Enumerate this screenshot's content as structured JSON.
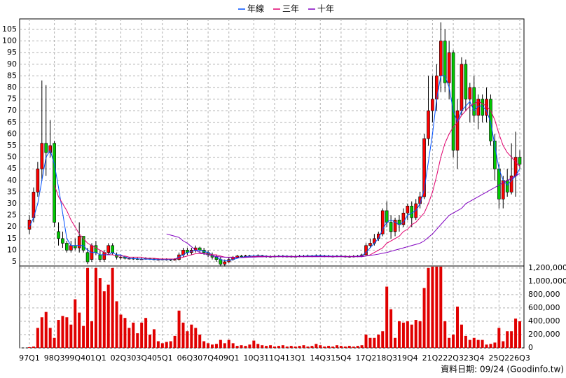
{
  "chart_data": [
    {
      "type": "candlestick",
      "categories": [
        "97Q1",
        null,
        null,
        null,
        null,
        null,
        "98Q3",
        null,
        null,
        null,
        null,
        "99Q4",
        null,
        null,
        null,
        null,
        "01Q1",
        null,
        null,
        null,
        null,
        null,
        "02Q3",
        null,
        null,
        null,
        null,
        "03Q4",
        null,
        null,
        null,
        null,
        "05Q1",
        null,
        null,
        null,
        null,
        null,
        "06Q3",
        null,
        null,
        null,
        null,
        "07Q4",
        null,
        null,
        null,
        null,
        "09Q1",
        null,
        null,
        null,
        null,
        null,
        "10Q3",
        null,
        null,
        null,
        null,
        "11Q4",
        null,
        null,
        null,
        null,
        "13Q1",
        null,
        null,
        null,
        null,
        null,
        "14Q3",
        null,
        null,
        null,
        null,
        "15Q4",
        null,
        null,
        null,
        null,
        null,
        "17Q2",
        null,
        null,
        null,
        null,
        "18Q3",
        null,
        null,
        null,
        null,
        "19Q4",
        null,
        null,
        null,
        null,
        null,
        "21Q2",
        null,
        null,
        null,
        null,
        "22Q3",
        null,
        null,
        null,
        null,
        "23Q4",
        null,
        null,
        null,
        null,
        null,
        "25Q2",
        null,
        null,
        null,
        null,
        "26Q3"
      ],
      "open": [
        19,
        24,
        35,
        45,
        56,
        52,
        56,
        18,
        15,
        13,
        10,
        12,
        11,
        16,
        9,
        6,
        12,
        8,
        6,
        9,
        12,
        8,
        7,
        7,
        6.5,
        6.5,
        6.3,
        6.2,
        6.2,
        6.4,
        6.2,
        6,
        6,
        6.1,
        6,
        5.8,
        6,
        8,
        10,
        9,
        10,
        11,
        10,
        9,
        8,
        7,
        6,
        4,
        5,
        6,
        7,
        7.5,
        7.3,
        7.6,
        7.4,
        7.5,
        7.7,
        7.5,
        7.2,
        7.3,
        7.4,
        7.5,
        7.3,
        7.4,
        7.2,
        7.3,
        7.5,
        7.4,
        7.6,
        7.5,
        7.7,
        7.6,
        7.5,
        7.4,
        7.3,
        7.5,
        7.4,
        7.2,
        7.3,
        7.4,
        7.5,
        8,
        12,
        13,
        15,
        17,
        27,
        22,
        18,
        23,
        21,
        26,
        29,
        24,
        30,
        33,
        58,
        70,
        75,
        85,
        100,
        82,
        95,
        53,
        70,
        90,
        75,
        80,
        68,
        75,
        68,
        75,
        57,
        45,
        32,
        40,
        35,
        42,
        50
      ],
      "high": [
        25,
        37,
        48,
        83,
        81,
        66,
        57,
        22,
        18,
        14,
        14,
        15,
        22,
        16,
        11,
        13,
        14,
        10,
        10,
        13,
        13,
        9,
        8,
        7.5,
        7,
        7,
        6.8,
        6.8,
        7,
        6.8,
        6.6,
        6.5,
        6.6,
        6.5,
        6.3,
        6.5,
        9,
        11,
        11,
        11,
        12,
        11.5,
        11,
        10,
        9,
        8,
        7,
        6,
        7,
        7.5,
        8,
        8,
        8,
        8,
        8,
        8.2,
        8,
        7.8,
        7.8,
        7.9,
        8,
        8,
        7.9,
        7.8,
        7.8,
        8,
        8,
        8.1,
        8,
        8.2,
        8.1,
        8,
        8,
        7.9,
        8,
        8,
        7.8,
        7.8,
        7.9,
        8,
        8.5,
        13,
        15,
        17,
        18,
        28,
        31,
        25,
        24,
        25,
        28,
        30,
        31,
        32,
        35,
        60,
        85,
        85,
        90,
        108,
        105,
        100,
        96,
        75,
        93,
        92,
        82,
        85,
        77,
        77,
        80,
        77,
        60,
        47,
        42,
        45,
        56,
        61,
        53
      ],
      "low": [
        17,
        22,
        33,
        40,
        42,
        50,
        20,
        12,
        11,
        9,
        9,
        10,
        9,
        9,
        4,
        5,
        8,
        5,
        5,
        8,
        8,
        6,
        6,
        6,
        6,
        5.8,
        5.8,
        5.8,
        5.9,
        5.8,
        5.6,
        5.5,
        5.6,
        5.5,
        5.3,
        5.5,
        5.5,
        7,
        8,
        8,
        9,
        9,
        8,
        7,
        6,
        5,
        3,
        3,
        4.5,
        5.5,
        7,
        6.8,
        7,
        7,
        7,
        7.2,
        7,
        6.8,
        6.8,
        6.9,
        7,
        6.9,
        6.9,
        6.8,
        6.9,
        7,
        7,
        7.1,
        7,
        7.2,
        7.1,
        7,
        7,
        6.9,
        7,
        7,
        6.8,
        6.8,
        6.9,
        7,
        7,
        8,
        11,
        12,
        14,
        16,
        20,
        15,
        16,
        18,
        20,
        23,
        20,
        23,
        28,
        32,
        55,
        65,
        70,
        78,
        78,
        75,
        50,
        45,
        68,
        70,
        65,
        65,
        62,
        65,
        65,
        55,
        40,
        28,
        28,
        33,
        34,
        33,
        45
      ],
      "close": [
        23,
        35,
        45,
        56,
        52,
        55,
        22,
        15,
        13,
        10,
        12,
        11,
        16,
        10,
        5,
        12,
        9,
        6,
        9,
        12,
        9,
        7,
        7,
        6.5,
        6.5,
        6.3,
        6.2,
        6.2,
        6.4,
        6.2,
        6,
        6,
        6.1,
        6,
        5.8,
        6,
        8,
        10,
        9,
        10,
        11,
        10,
        9,
        8,
        7,
        6,
        4,
        5,
        6,
        7,
        7.5,
        7.3,
        7.6,
        7.4,
        7.5,
        7.7,
        7.5,
        7.2,
        7.3,
        7.4,
        7.5,
        7.3,
        7.4,
        7.2,
        7.3,
        7.5,
        7.4,
        7.6,
        7.5,
        7.7,
        7.6,
        7.5,
        7.4,
        7.3,
        7.5,
        7.4,
        7.2,
        7.3,
        7.4,
        7.5,
        8,
        12,
        13,
        15,
        17,
        27,
        22,
        18,
        23,
        21,
        26,
        29,
        24,
        30,
        33,
        58,
        70,
        75,
        85,
        100,
        82,
        95,
        53,
        70,
        90,
        75,
        80,
        68,
        75,
        68,
        75,
        57,
        45,
        32,
        40,
        35,
        42,
        50,
        47
      ],
      "up_color": "#ff0000",
      "down_color": "#00c800",
      "series": [
        {
          "name": "年線",
          "color": "#0050ff",
          "values": [
            20,
            24,
            30,
            40,
            50,
            53,
            47,
            37,
            26,
            15,
            12,
            12,
            12,
            12,
            10,
            9,
            9,
            8,
            8,
            8,
            9,
            8,
            8,
            7,
            6.5,
            6.4,
            6.3,
            6.2,
            6.2,
            6.1,
            6,
            6,
            6,
            6,
            6,
            6.2,
            7,
            8,
            9,
            9.5,
            10,
            10,
            9.5,
            9,
            8,
            7,
            6,
            5.5,
            5.5,
            6,
            6.5,
            7,
            7.2,
            7.4,
            7.5,
            7.5,
            7.5,
            7.4,
            7.3,
            7.3,
            7.4,
            7.4,
            7.4,
            7.3,
            7.3,
            7.4,
            7.4,
            7.5,
            7.5,
            7.6,
            7.6,
            7.5,
            7.5,
            7.4,
            7.4,
            7.4,
            7.3,
            7.3,
            7.3,
            7.4,
            7.6,
            9,
            11,
            13,
            15,
            19,
            22,
            23,
            22,
            21,
            22,
            25,
            26,
            27,
            30,
            36,
            48,
            60,
            75,
            85,
            85,
            80,
            70,
            65,
            70,
            72,
            74,
            70,
            72,
            72,
            70,
            65,
            55,
            45,
            40,
            38,
            40,
            42,
            45
          ]
        },
        {
          "name": "三年",
          "color": "#e0006e",
          "values": [
            null,
            null,
            null,
            null,
            null,
            null,
            38,
            33,
            30,
            27,
            23,
            20,
            17,
            15,
            13,
            12,
            11,
            10,
            9,
            8,
            8,
            7.5,
            7.5,
            7.5,
            7,
            7,
            7,
            7,
            6.5,
            6.5,
            6.5,
            6.3,
            6.2,
            6.2,
            6.2,
            6.2,
            6.5,
            7,
            7.5,
            8,
            8.5,
            8.5,
            8.5,
            8.5,
            8,
            8,
            7.5,
            7,
            7,
            7,
            6.8,
            6.8,
            7,
            7.1,
            7.2,
            7.3,
            7.3,
            7.3,
            7.3,
            7.3,
            7.3,
            7.3,
            7.3,
            7.3,
            7.3,
            7.3,
            7.3,
            7.3,
            7.3,
            7.3,
            7.3,
            7.3,
            7.3,
            7.3,
            7.3,
            7.3,
            7.3,
            7.3,
            7.3,
            7.3,
            7.4,
            7.5,
            8,
            9,
            10,
            11,
            13,
            14,
            15,
            16,
            18,
            19,
            21,
            22,
            24,
            26,
            30,
            35,
            42,
            50,
            56,
            60,
            63,
            65,
            68,
            70,
            72,
            73,
            74,
            73,
            72,
            70,
            66,
            60,
            55,
            52,
            50,
            48,
            46
          ]
        },
        {
          "name": "十年",
          "color": "#8000c0",
          "values": [
            null,
            null,
            null,
            null,
            null,
            null,
            null,
            null,
            null,
            null,
            null,
            null,
            null,
            null,
            null,
            null,
            null,
            null,
            null,
            null,
            null,
            null,
            null,
            null,
            null,
            null,
            null,
            null,
            null,
            null,
            null,
            null,
            null,
            17,
            16.5,
            16,
            15.5,
            14,
            13,
            11.5,
            10,
            9,
            8.5,
            8,
            7.5,
            7.3,
            7.1,
            7,
            6.9,
            6.8,
            6.8,
            6.8,
            6.9,
            7,
            7,
            7.1,
            7.1,
            7.2,
            7.2,
            7.2,
            7.2,
            7.2,
            7.2,
            7.2,
            7.2,
            7.2,
            7.2,
            7.2,
            7.2,
            7.2,
            7.2,
            7.2,
            7.2,
            7.2,
            7.2,
            7.2,
            7.2,
            7.2,
            7.2,
            7.2,
            7.2,
            7.5,
            7.8,
            8,
            8.3,
            8.7,
            9,
            9.5,
            10,
            10.5,
            11,
            11.5,
            12,
            12.5,
            13,
            14,
            15.5,
            17,
            19,
            21,
            23,
            25,
            26,
            27,
            28,
            30,
            31,
            32,
            33,
            34,
            35,
            36,
            37,
            38,
            39,
            40,
            41,
            42,
            43
          ]
        }
      ],
      "ylim": [
        3.2,
        109.5
      ],
      "yticks": [
        5,
        10,
        15,
        20,
        25,
        30,
        35,
        40,
        45,
        50,
        55,
        60,
        65,
        70,
        75,
        80,
        85,
        90,
        95,
        100,
        105
      ],
      "grid": true,
      "legend": "top"
    },
    {
      "type": "bar",
      "color": "#e00000",
      "values": [
        10000,
        20000,
        300000,
        460000,
        540000,
        300000,
        150000,
        420000,
        480000,
        460000,
        350000,
        730000,
        530000,
        330000,
        1200000,
        400000,
        1200000,
        1050000,
        850000,
        950000,
        1200000,
        700000,
        500000,
        450000,
        300000,
        380000,
        220000,
        380000,
        450000,
        200000,
        280000,
        100000,
        70000,
        90000,
        100000,
        180000,
        560000,
        380000,
        250000,
        350000,
        300000,
        200000,
        100000,
        70000,
        50000,
        60000,
        120000,
        70000,
        120000,
        70000,
        30000,
        40000,
        30000,
        50000,
        110000,
        60000,
        40000,
        30000,
        40000,
        20000,
        30000,
        40000,
        20000,
        30000,
        20000,
        30000,
        40000,
        20000,
        30000,
        60000,
        40000,
        20000,
        30000,
        20000,
        40000,
        30000,
        20000,
        30000,
        20000,
        30000,
        40000,
        200000,
        150000,
        150000,
        200000,
        250000,
        920000,
        580000,
        150000,
        400000,
        380000,
        400000,
        350000,
        420000,
        400000,
        900000,
        1200000,
        1220000,
        1220000,
        1220000,
        400000,
        150000,
        200000,
        620000,
        350000,
        180000,
        120000,
        150000,
        120000,
        120000,
        50000,
        60000,
        80000,
        300000,
        100000,
        250000,
        250000,
        440000,
        400000
      ],
      "ylim": [
        0,
        1230000
      ],
      "yticks": [
        0,
        {
          "value": 200000,
          "label": "200,000"
        },
        {
          "value": 400000,
          "label": "400,000"
        },
        {
          "value": 600000,
          "label": "600,000"
        },
        {
          "value": 800000,
          "label": "800,000"
        },
        {
          "value": 1000000,
          "label": "1,000,000"
        },
        {
          "value": 1200000,
          "label": "1,200,000"
        }
      ],
      "grid": true,
      "source": "資料日期: 09/24  (Goodinfo.tw)"
    }
  ]
}
